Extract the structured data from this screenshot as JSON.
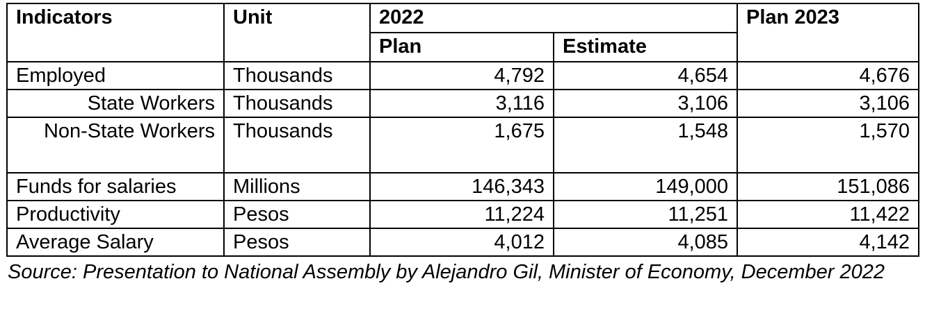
{
  "table": {
    "headers": {
      "indicators": "Indicators",
      "unit": "Unit",
      "year_2022": "2022",
      "plan_2023": "Plan 2023",
      "plan": "Plan",
      "estimate": "Estimate"
    },
    "rows": [
      {
        "indicator": "Employed",
        "unit": "Thousands",
        "plan_2022": "4,792",
        "estimate_2022": "4,654",
        "plan_2023": "4,676"
      },
      {
        "indicator": "State Workers",
        "unit": "Thousands",
        "plan_2022": "3,116",
        "estimate_2022": "3,106",
        "plan_2023": "3,106"
      },
      {
        "indicator": "Non-State Workers",
        "unit": "Thousands",
        "plan_2022": "1,675",
        "estimate_2022": "1,548",
        "plan_2023": "1,570"
      },
      {
        "indicator": "Funds for salaries",
        "unit": "Millions",
        "plan_2022": "146,343",
        "estimate_2022": "149,000",
        "plan_2023": "151,086"
      },
      {
        "indicator": "Productivity",
        "unit": "Pesos",
        "plan_2022": "11,224",
        "estimate_2022": "11,251",
        "plan_2023": "11,422"
      },
      {
        "indicator": "Average Salary",
        "unit": "Pesos",
        "plan_2022": "4,012",
        "estimate_2022": "4,085",
        "plan_2023": "4,142"
      }
    ]
  },
  "source": "Source: Presentation to National Assembly by Alejandro Gil, Minister of Economy, December 2022"
}
